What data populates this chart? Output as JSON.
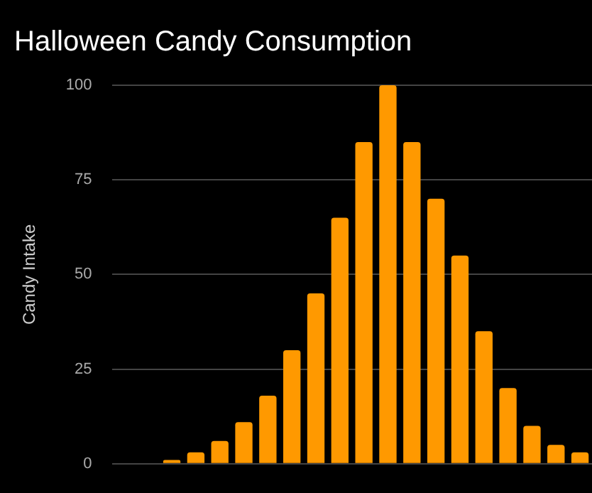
{
  "chart_data": {
    "type": "bar",
    "title": "Halloween Candy Consumption",
    "ylabel": "Candy Intake",
    "categories": [
      null,
      null,
      null,
      null,
      null,
      null,
      null,
      null,
      null,
      null,
      null,
      null,
      null,
      null,
      null,
      null,
      null,
      null,
      null,
      null
    ],
    "values": [
      0,
      0,
      1,
      3,
      6,
      11,
      18,
      30,
      45,
      65,
      85,
      100,
      85,
      70,
      55,
      35,
      20,
      10,
      5,
      3
    ],
    "color": "#ff9900",
    "ylim": [
      0,
      100
    ],
    "yticks": [
      0,
      25,
      50,
      75,
      100
    ],
    "grid": "y"
  }
}
